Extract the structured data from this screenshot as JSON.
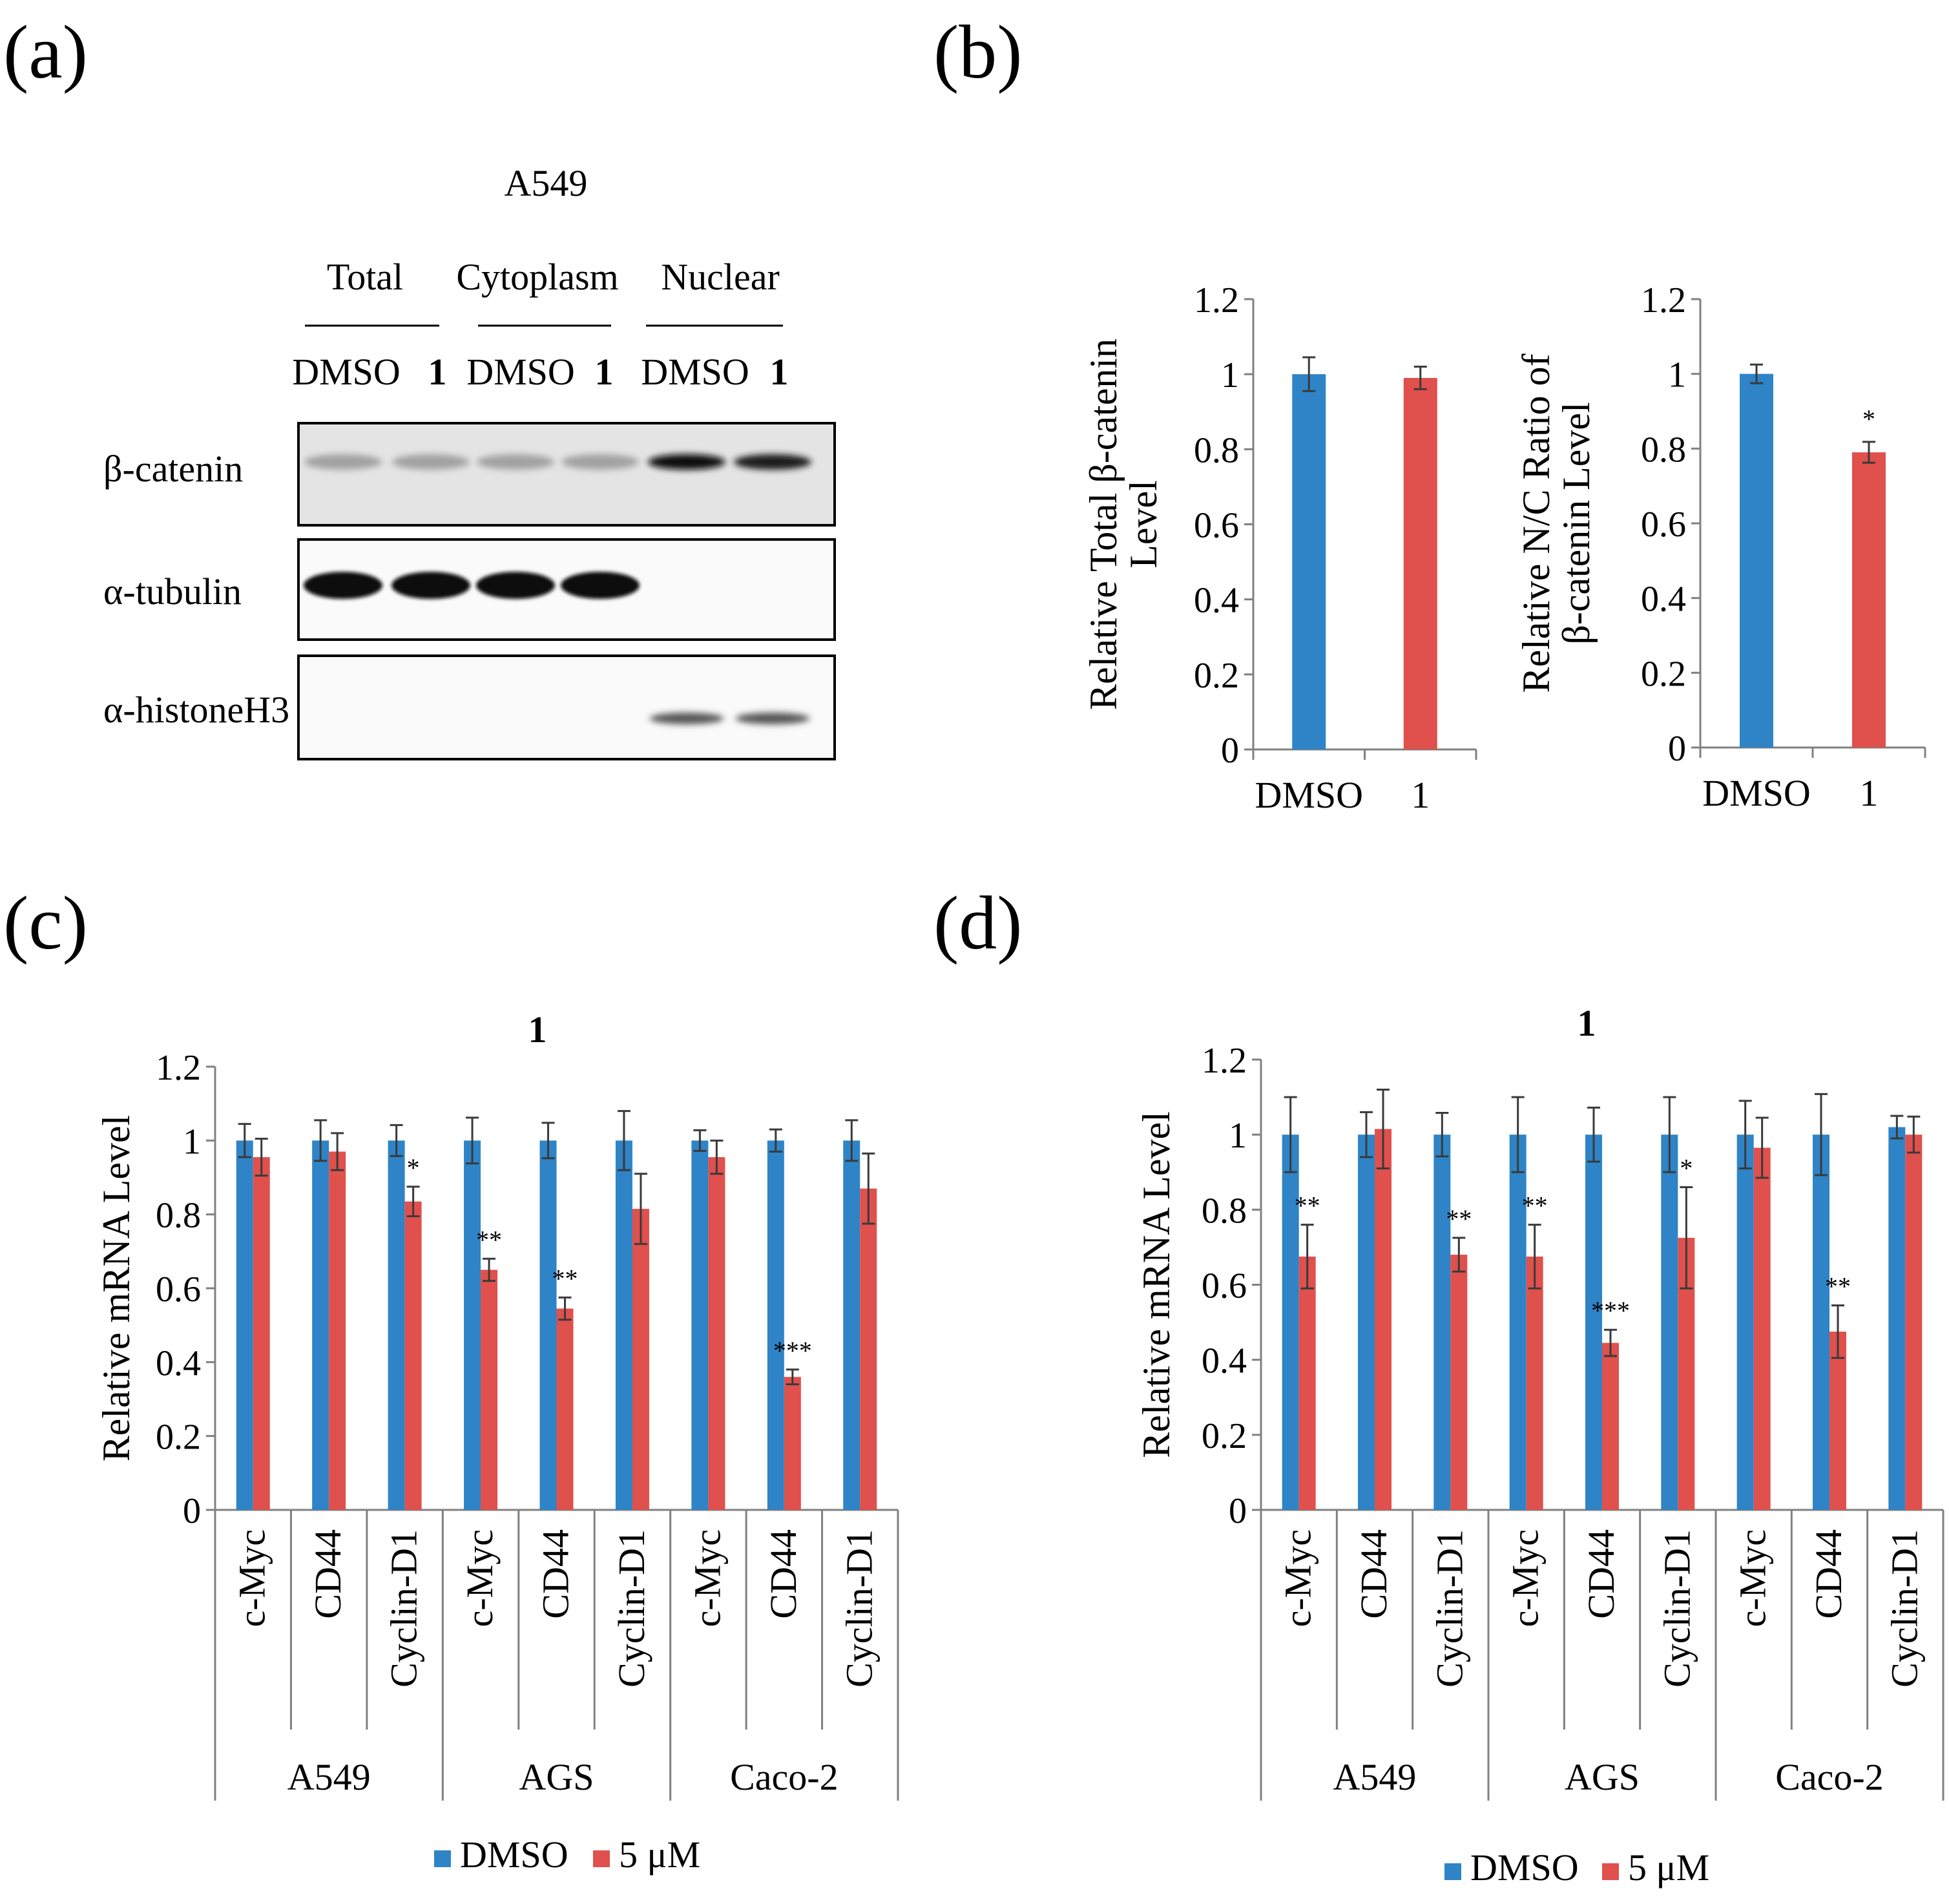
{
  "colors": {
    "dmso": "#2E84C6",
    "treated": "#E0504D",
    "axis": "#808080",
    "errorbar": "#3a3a3a",
    "text": "#000000"
  },
  "panel_labels": {
    "a": "(a)",
    "b": "(b)",
    "c": "(c)",
    "d": "(d)"
  },
  "blot": {
    "cell_line": "A549",
    "groups": [
      "Total",
      "Cytoplasm",
      "Nuclear"
    ],
    "lane_labels": [
      "DMSO",
      "1",
      "DMSO",
      "1",
      "DMSO",
      "1"
    ],
    "rows": [
      {
        "label": "β-catenin",
        "lane_intensity": [
          0.2,
          0.2,
          0.2,
          0.2,
          1.0,
          0.9
        ]
      },
      {
        "label": "α-tubulin",
        "lane_intensity": [
          1.0,
          1.0,
          1.0,
          1.0,
          0.0,
          0.0
        ]
      },
      {
        "label": "α-histoneH3",
        "lane_intensity": [
          0.0,
          0.0,
          0.0,
          0.0,
          0.6,
          0.6
        ]
      }
    ]
  },
  "legend": {
    "dmso": "DMSO",
    "treated": "5 μM"
  },
  "chart_data": [
    {
      "id": "b-left",
      "type": "bar",
      "ylabel_lines": [
        "Relative Total β-catenin",
        "Level"
      ],
      "categories": [
        "DMSO",
        "1"
      ],
      "values": [
        1.0,
        0.99
      ],
      "errors": [
        0.045,
        0.03
      ],
      "significance": [
        "",
        ""
      ],
      "ylim": [
        0,
        1.2
      ],
      "yticks": [
        "0",
        "0.2",
        "0.4",
        "0.6",
        "0.8",
        "1",
        "1.2"
      ]
    },
    {
      "id": "b-right",
      "type": "bar",
      "ylabel_lines": [
        "Relative N/C Ratio of",
        "β-catenin  Level"
      ],
      "categories": [
        "DMSO",
        "1"
      ],
      "values": [
        1.0,
        0.79
      ],
      "errors": [
        0.025,
        0.028
      ],
      "significance": [
        "",
        "*"
      ],
      "ylim": [
        0,
        1.2
      ],
      "yticks": [
        "0",
        "0.2",
        "0.4",
        "0.6",
        "0.8",
        "1",
        "1.2"
      ]
    },
    {
      "id": "c",
      "type": "bar",
      "title": "1",
      "ylabel": "Relative mRNA Level",
      "ylim": [
        0,
        1.2
      ],
      "yticks": [
        "0",
        "0.2",
        "0.4",
        "0.6",
        "0.8",
        "1",
        "1.2"
      ],
      "categories": [
        "c-Myc",
        "CD44",
        "Cyclin-D1",
        "c-Myc",
        "CD44",
        "Cyclin-D1",
        "c-Myc",
        "CD44",
        "Cyclin-D1"
      ],
      "cell_lines": [
        "A549",
        "AGS",
        "Caco-2"
      ],
      "series": [
        {
          "name": "DMSO",
          "values": [
            1,
            1,
            1,
            1,
            1,
            1,
            1,
            1,
            1
          ],
          "errors": [
            0.045,
            0.055,
            0.042,
            0.062,
            0.048,
            0.08,
            0.028,
            0.03,
            0.055
          ]
        },
        {
          "name": "5 μM",
          "values": [
            0.955,
            0.97,
            0.835,
            0.65,
            0.545,
            0.815,
            0.955,
            0.36,
            0.87
          ],
          "errors": [
            0.05,
            0.05,
            0.04,
            0.03,
            0.03,
            0.095,
            0.045,
            0.02,
            0.095
          ]
        }
      ],
      "significance": [
        "",
        "",
        "*",
        "**",
        "**",
        "",
        "",
        "***",
        ""
      ]
    },
    {
      "id": "d",
      "type": "bar",
      "title": "1",
      "ylabel": "Relative mRNA Level",
      "ylim": [
        0,
        1.2
      ],
      "yticks": [
        "0",
        "0.2",
        "0.4",
        "0.6",
        "0.8",
        "1",
        "1.2"
      ],
      "categories": [
        "c-Myc",
        "CD44",
        "Cyclin-D1",
        "c-Myc",
        "CD44",
        "Cyclin-D1",
        "c-Myc",
        "CD44",
        "Cyclin-D1"
      ],
      "cell_lines": [
        "A549",
        "AGS",
        "Caco-2"
      ],
      "series": [
        {
          "name": "DMSO",
          "values": [
            1,
            1,
            1,
            1,
            1,
            1,
            1,
            1,
            1.02
          ],
          "errors": [
            0.1,
            0.06,
            0.058,
            0.1,
            0.072,
            0.1,
            0.09,
            0.108,
            0.03
          ]
        },
        {
          "name": "5 μM",
          "values": [
            0.675,
            1.015,
            0.68,
            0.675,
            0.445,
            0.725,
            0.965,
            0.475,
            1.0
          ],
          "errors": [
            0.085,
            0.105,
            0.045,
            0.085,
            0.035,
            0.135,
            0.08,
            0.07,
            0.048
          ]
        }
      ],
      "significance": [
        "**",
        "",
        "**",
        "**",
        "***",
        "*",
        "",
        "**",
        ""
      ]
    }
  ]
}
